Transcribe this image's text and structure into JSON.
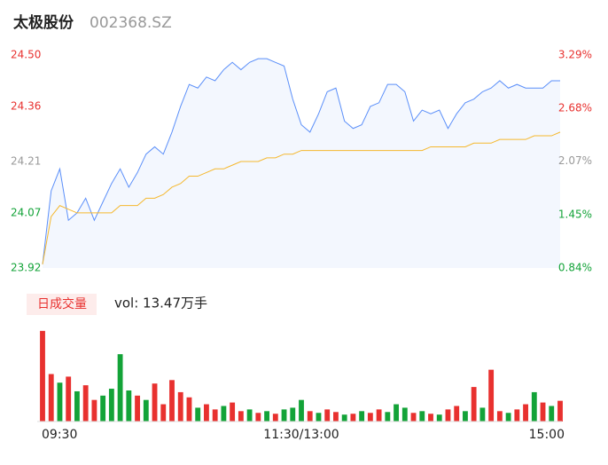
{
  "header": {
    "name": "太极股份",
    "code": "002368.SZ"
  },
  "chart_data": [
    {
      "type": "line",
      "categories": [
        "09:30",
        null,
        null,
        null,
        null,
        null,
        null,
        null,
        null,
        null,
        null,
        null,
        null,
        null,
        null,
        null,
        null,
        null,
        null,
        null,
        null,
        null,
        null,
        null,
        null,
        null,
        null,
        null,
        null,
        null,
        "11:30/13:00",
        null,
        null,
        null,
        null,
        null,
        null,
        null,
        null,
        null,
        null,
        null,
        null,
        null,
        null,
        null,
        null,
        null,
        null,
        null,
        null,
        null,
        null,
        null,
        null,
        null,
        null,
        null,
        null,
        null,
        "15:00"
      ],
      "ylim": [
        23.92,
        24.5
      ],
      "yticks": [
        23.92,
        24.07,
        24.21,
        24.36,
        {
          "value": 24.5,
          "label": "24.50"
        }
      ],
      "ytick_colors": [
        "#13a338",
        "#13a338",
        "#999999",
        "#e8312f",
        "#e8312f"
      ],
      "y2lim": [
        0.84,
        3.29
      ],
      "y2ticks": [
        {
          "value": 0.84,
          "label": "0.84%"
        },
        {
          "value": 1.45,
          "label": "1.45%"
        },
        {
          "value": 2.07,
          "label": "2.07%"
        },
        {
          "value": 2.68,
          "label": "2.68%"
        },
        {
          "value": 3.29,
          "label": "3.29%"
        }
      ],
      "y2tick_colors": [
        "#13a338",
        "#13a338",
        "#999999",
        "#e8312f",
        "#e8312f"
      ],
      "area_fill": "#f3f7fe",
      "series": [
        {
          "color": "#5b8ff9",
          "values": [
            23.93,
            24.13,
            24.19,
            24.05,
            24.07,
            24.11,
            24.05,
            24.1,
            24.15,
            24.19,
            24.14,
            24.18,
            24.23,
            24.25,
            24.23,
            24.29,
            24.36,
            24.42,
            24.41,
            24.44,
            24.43,
            24.46,
            24.48,
            24.46,
            24.48,
            24.49,
            24.49,
            24.48,
            24.47,
            24.38,
            24.31,
            24.29,
            24.34,
            24.4,
            24.41,
            24.32,
            24.3,
            24.31,
            24.36,
            24.37,
            24.42,
            24.42,
            24.4,
            24.32,
            24.35,
            24.34,
            24.35,
            24.3,
            24.34,
            24.37,
            24.38,
            24.4,
            24.41,
            24.43,
            24.41,
            24.42,
            24.41,
            24.41,
            24.41,
            24.43,
            24.43
          ]
        },
        {
          "color": "#f5b82e",
          "values": [
            23.93,
            24.06,
            24.09,
            24.08,
            24.07,
            24.07,
            24.07,
            24.07,
            24.07,
            24.09,
            24.09,
            24.09,
            24.11,
            24.11,
            24.12,
            24.14,
            24.15,
            24.17,
            24.17,
            24.18,
            24.19,
            24.19,
            24.2,
            24.21,
            24.21,
            24.21,
            24.22,
            24.22,
            24.23,
            24.23,
            24.24,
            24.24,
            24.24,
            24.24,
            24.24,
            24.24,
            24.24,
            24.24,
            24.24,
            24.24,
            24.24,
            24.24,
            24.24,
            24.24,
            24.24,
            24.25,
            24.25,
            24.25,
            24.25,
            24.25,
            24.26,
            24.26,
            24.26,
            24.27,
            24.27,
            24.27,
            24.27,
            24.28,
            24.28,
            24.28,
            24.29
          ]
        }
      ]
    },
    {
      "type": "volume",
      "title": "日成交量",
      "summary": "vol: 13.47万手",
      "ylim": [
        0,
        110
      ],
      "up_color": "#e8312f",
      "down_color": "#13a338",
      "values": [
        105,
        55,
        45,
        52,
        35,
        42,
        25,
        30,
        38,
        78,
        36,
        30,
        25,
        44,
        20,
        48,
        34,
        28,
        16,
        20,
        14,
        18,
        22,
        12,
        14,
        10,
        12,
        9,
        14,
        16,
        25,
        12,
        10,
        14,
        11,
        8,
        9,
        12,
        10,
        14,
        11,
        20,
        16,
        10,
        12,
        9,
        8,
        14,
        18,
        12,
        40,
        16,
        60,
        12,
        10,
        14,
        20,
        34,
        22,
        18,
        24
      ],
      "directions": [
        "up",
        "up",
        "down",
        "up",
        "down",
        "up",
        "up",
        "down",
        "down",
        "down",
        "down",
        "up",
        "down",
        "up",
        "up",
        "up",
        "up",
        "up",
        "down",
        "up",
        "up",
        "down",
        "up",
        "up",
        "down",
        "up",
        "down",
        "up",
        "down",
        "down",
        "down",
        "up",
        "down",
        "up",
        "up",
        "down",
        "up",
        "down",
        "up",
        "up",
        "down",
        "down",
        "down",
        "up",
        "down",
        "up",
        "down",
        "up",
        "up",
        "down",
        "up",
        "down",
        "up",
        "up",
        "down",
        "up",
        "up",
        "down",
        "up",
        "down",
        "up"
      ]
    }
  ]
}
